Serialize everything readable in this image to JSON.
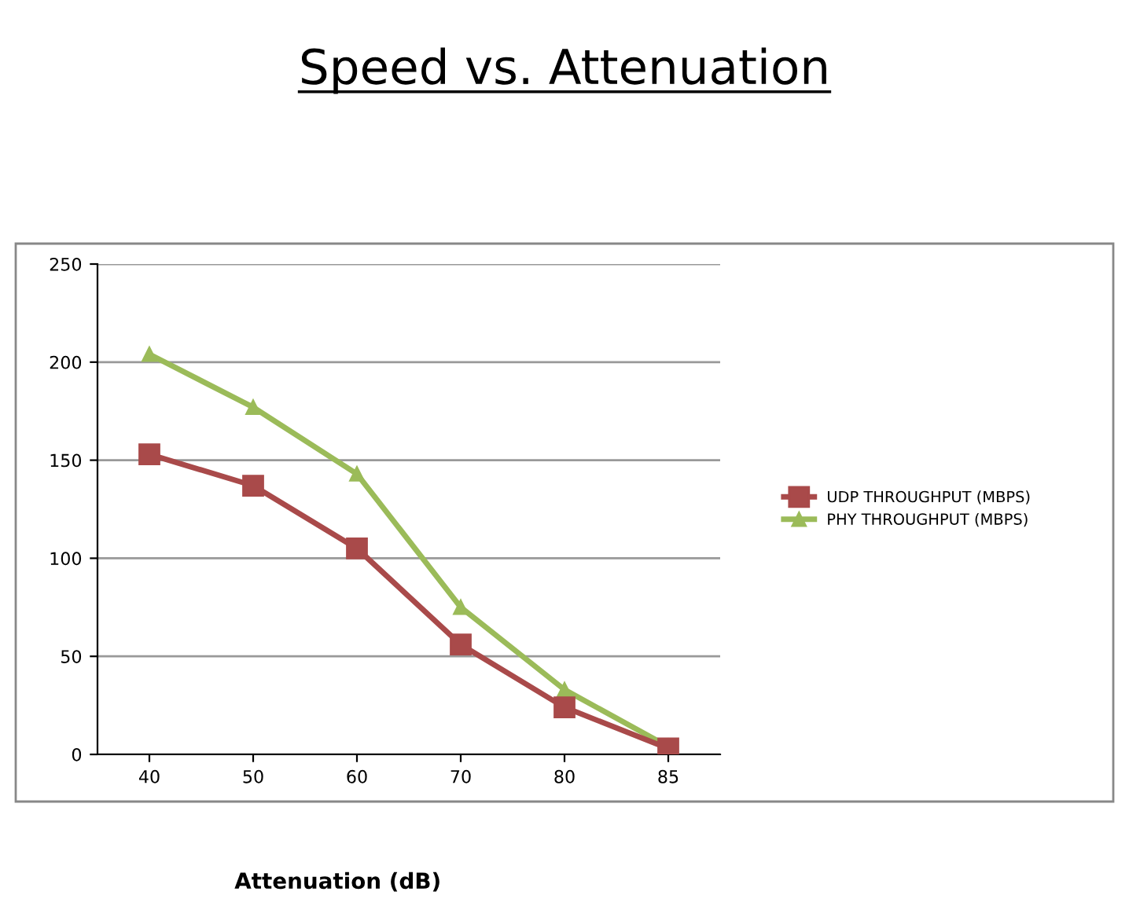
{
  "chart_data": {
    "type": "line",
    "title": "Speed vs. Attenuation",
    "xlabel": "Attenuation (dB)",
    "categories": [
      "40",
      "50",
      "60",
      "70",
      "80",
      "85"
    ],
    "series": [
      {
        "name": "UDP THROUGHPUT (MBPS)",
        "color": "#a94a4a",
        "marker": "square",
        "values": [
          153,
          137,
          105,
          56,
          24,
          3
        ]
      },
      {
        "name": "PHY THROUGHPUT (MBPS)",
        "color": "#9bbb59",
        "marker": "triangle",
        "values": [
          204,
          177,
          143,
          75,
          33,
          4
        ]
      }
    ],
    "ylim": [
      0,
      250
    ],
    "yticks": [
      0,
      50,
      100,
      150,
      200,
      250
    ],
    "grid": "y",
    "legend": "right",
    "line_style": "solid"
  }
}
